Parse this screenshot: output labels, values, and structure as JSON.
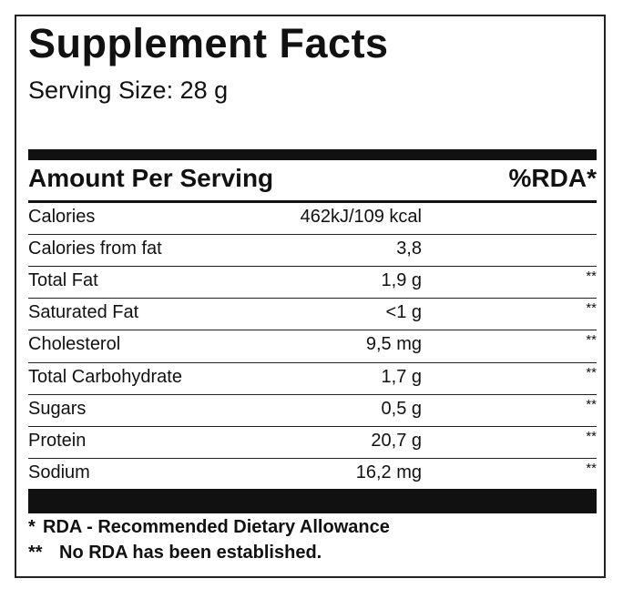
{
  "header": {
    "title": "Supplement Facts",
    "serving_size": "Serving Size: 28 g"
  },
  "table": {
    "columns": [
      "Amount Per Serving",
      "%RDA*"
    ],
    "rows": [
      [
        "Calories",
        "462kJ/109 kcal"
      ],
      [
        "Calories from fat",
        "3,8"
      ],
      [
        "Total Fat",
        "1,9 g",
        "**"
      ],
      [
        "Saturated Fat",
        "<1 g",
        "**"
      ],
      [
        "Cholesterol",
        "9,5 mg",
        "**"
      ],
      [
        "Total Carbohydrate",
        "1,7 g",
        "**"
      ],
      [
        "Sugars",
        "0,5 g",
        "**"
      ],
      [
        "Protein",
        "20,7 g",
        "**"
      ],
      [
        "Sodium",
        "16,2 mg",
        "**"
      ]
    ]
  },
  "footnotes": [
    [
      "*",
      "RDA - Recommended Dietary Allowance"
    ],
    [
      "**",
      "No RDA has been established."
    ]
  ]
}
